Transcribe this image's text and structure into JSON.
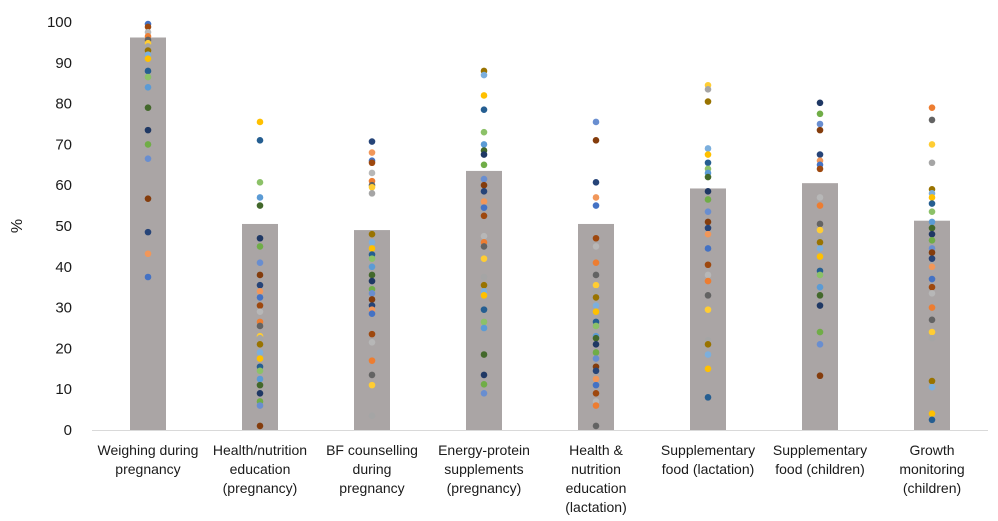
{
  "chart_data": {
    "type": "bar",
    "ylabel": "%",
    "ylim": [
      0,
      100
    ],
    "yticks": [
      "0",
      "10",
      "20",
      "30",
      "40",
      "50",
      "60",
      "70",
      "80",
      "90",
      "100"
    ],
    "grid": false,
    "bar_color": "#aaa5a5",
    "categories": [
      [
        "Weighing during",
        "pregnancy"
      ],
      [
        "Health/nutrition",
        "education",
        "(pregnancy)"
      ],
      [
        "BF counselling",
        "during",
        "pregnancy"
      ],
      [
        "Energy-protein",
        "supplements",
        "(pregnancy)"
      ],
      [
        "Health &",
        "nutrition",
        "education",
        "(lactation)"
      ],
      [
        "Supplementary",
        "food (lactation)"
      ],
      [
        "Supplementary",
        "food (children)"
      ],
      [
        "Growth",
        "monitoring",
        "(children)"
      ]
    ],
    "values": [
      96.2,
      50.5,
      49.0,
      63.5,
      50.5,
      59.2,
      60.5,
      51.3
    ],
    "point_colors": [
      "#4472c4",
      "#ed7d31",
      "#a5a5a5",
      "#ffc000",
      "#5b9bd5",
      "#70ad47",
      "#264478",
      "#9e480e",
      "#636363",
      "#997300",
      "#255e91",
      "#43682b",
      "#698ed0",
      "#f1975a",
      "#b7b7b7",
      "#ffcd33",
      "#7cafdd",
      "#8cc168",
      "#1f3864",
      "#843c0c"
    ],
    "points": [
      [
        99.5,
        98.8,
        97.5,
        96.5,
        95.6,
        94.8,
        94.0,
        93.0,
        92.0,
        91.0,
        88.0,
        86.5,
        84.0,
        79.0,
        73.5,
        70.0,
        66.5,
        56.7,
        48.5,
        43.2,
        37.5
      ],
      [
        75.5,
        71.0,
        60.7,
        57.0,
        55.0,
        47.0,
        45.0,
        41.0,
        38.0,
        35.5,
        34.0,
        32.5,
        30.5,
        29.0,
        26.5,
        25.5,
        23.0,
        22.5,
        21.0,
        19.0,
        17.5,
        15.5,
        14.5,
        12.5,
        11.0,
        9.0,
        7.0,
        6.0,
        1.0
      ],
      [
        70.7,
        68.0,
        66.0,
        65.5,
        63.0,
        61.0,
        60.0,
        59.5,
        58.0,
        48.0,
        46.0,
        44.5,
        43.0,
        42.0,
        40.0,
        38.0,
        36.5,
        34.5,
        33.5,
        32.0,
        30.5,
        29.5,
        28.5,
        23.5,
        21.5,
        17.0,
        13.5,
        11.0,
        3.5
      ],
      [
        88.0,
        87.0,
        82.0,
        78.5,
        73.0,
        70.0,
        68.5,
        67.5,
        65.0,
        61.5,
        60.0,
        58.5,
        56.0,
        54.5,
        52.5,
        47.5,
        46.0,
        45.0,
        42.0,
        37.5,
        35.5,
        34.0,
        33.0,
        29.5,
        26.5,
        25.0,
        18.5,
        13.5,
        11.2,
        9.0
      ],
      [
        75.5,
        71.0,
        60.7,
        57.0,
        55.0,
        47.0,
        45.0,
        41.0,
        38.0,
        35.5,
        34.0,
        32.5,
        30.5,
        29.0,
        26.5,
        25.5,
        23.0,
        22.5,
        21.0,
        19.0,
        17.5,
        15.5,
        14.5,
        12.5,
        11.0,
        9.0,
        7.0,
        6.0,
        1.0
      ],
      [
        84.5,
        83.5,
        80.5,
        69.0,
        67.5,
        65.5,
        64.0,
        63.0,
        62.0,
        58.5,
        56.5,
        53.5,
        51.0,
        49.5,
        48.0,
        44.5,
        40.5,
        38.0,
        36.5,
        33.0,
        29.5,
        22.0,
        21.0,
        18.5,
        15.0,
        8.0
      ],
      [
        80.2,
        77.5,
        75.0,
        73.5,
        67.5,
        66.0,
        65.0,
        64.0,
        57.0,
        55.0,
        50.5,
        49.0,
        47.0,
        46.0,
        44.5,
        42.5,
        39.0,
        38.0,
        35.0,
        33.0,
        30.5,
        24.0,
        21.0,
        13.3
      ],
      [
        79.0,
        76.0,
        70.0,
        65.5,
        59.0,
        58.0,
        57.0,
        55.5,
        53.5,
        51.0,
        49.5,
        48.0,
        46.5,
        44.5,
        43.5,
        42.0,
        40.0,
        37.0,
        35.0,
        33.5,
        30.0,
        27.0,
        24.0,
        22.5,
        12.0,
        10.5,
        4.0,
        2.5
      ]
    ]
  }
}
